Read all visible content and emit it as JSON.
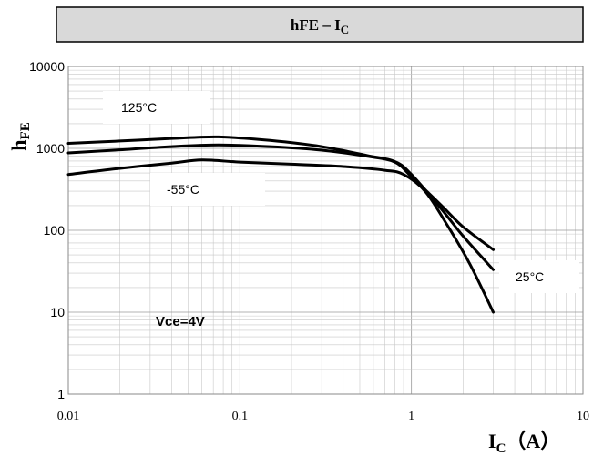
{
  "chart_data": {
    "type": "line",
    "title": {
      "main": "hFE – I",
      "sub": "C"
    },
    "ylabel": {
      "main": "h",
      "sub": "FE"
    },
    "xlabel": {
      "main": "I",
      "sub": "C",
      "unit": "（A）"
    },
    "x_scale": "log",
    "y_scale": "log",
    "xlim": [
      0.01,
      10
    ],
    "ylim": [
      1,
      10000
    ],
    "x_ticks": [
      "0.01",
      "0.1",
      "1",
      "10"
    ],
    "y_ticks": [
      "1",
      "10",
      "100",
      "1000",
      "10000"
    ],
    "grid": true,
    "annotations": [
      "125°C",
      "-55°C",
      "25°C",
      "Vce=4V"
    ],
    "series": [
      {
        "name": "125°C",
        "x": [
          0.01,
          0.02,
          0.04,
          0.075,
          0.15,
          0.3,
          0.55,
          0.8,
          1.0,
          1.5,
          2.0,
          3.0
        ],
        "y": [
          1150,
          1230,
          1320,
          1380,
          1250,
          1050,
          820,
          690,
          480,
          180,
          85,
          33
        ]
      },
      {
        "name": "25°C",
        "x": [
          0.01,
          0.02,
          0.04,
          0.075,
          0.15,
          0.3,
          0.55,
          0.8,
          1.0,
          1.5,
          2.0,
          3.0
        ],
        "y": [
          880,
          960,
          1050,
          1100,
          1050,
          950,
          800,
          680,
          450,
          200,
          110,
          58
        ]
      },
      {
        "name": "-55°C",
        "x": [
          0.01,
          0.02,
          0.04,
          0.06,
          0.1,
          0.2,
          0.4,
          0.7,
          0.9,
          1.2,
          1.6,
          2.2,
          3.0
        ],
        "y": [
          480,
          570,
          660,
          720,
          680,
          640,
          600,
          540,
          480,
          300,
          120,
          38,
          10
        ]
      }
    ]
  }
}
